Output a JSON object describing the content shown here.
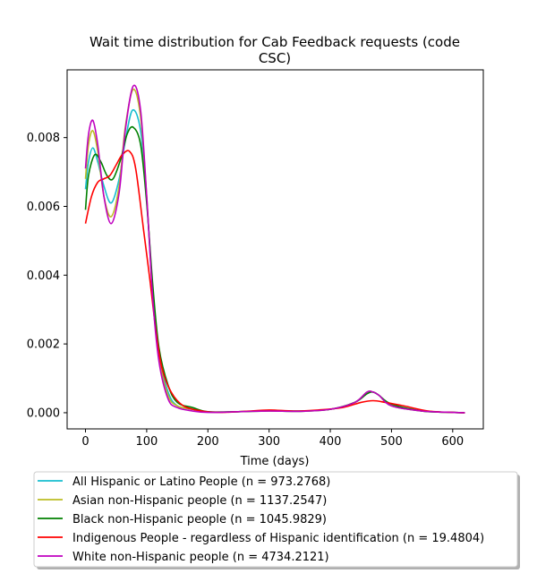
{
  "chart_data": {
    "type": "line",
    "title_lines": [
      "Wait time distribution  for Cab Feedback  requests (code",
      "CSC)"
    ],
    "xlabel": "Time (days)",
    "ylabel": "",
    "xlim": [
      -30,
      650
    ],
    "ylim": [
      -0.00047,
      0.00997
    ],
    "xticks": [
      0,
      100,
      200,
      300,
      400,
      500,
      600
    ],
    "xtick_labels": [
      "0",
      "100",
      "200",
      "300",
      "400",
      "500",
      "600"
    ],
    "yticks": [
      0.0,
      0.002,
      0.004,
      0.006,
      0.008
    ],
    "ytick_labels": [
      "0.000",
      "0.002",
      "0.004",
      "0.006",
      "0.008"
    ],
    "grid": false,
    "legend_position": "below",
    "series": [
      {
        "name": "All Hispanic or Latino People (n = 973.2768)",
        "color": "#17becf",
        "x": [
          0,
          5,
          12,
          20,
          30,
          42,
          55,
          65,
          77,
          90,
          100,
          110,
          120,
          135,
          150,
          175,
          200,
          250,
          300,
          350,
          400,
          440,
          460,
          470,
          480,
          500,
          550,
          600,
          620
        ],
        "y": [
          0.0065,
          0.0073,
          0.0077,
          0.0073,
          0.0066,
          0.0061,
          0.0068,
          0.0079,
          0.0088,
          0.0082,
          0.0062,
          0.0035,
          0.0017,
          0.0006,
          0.0002,
          0.0001,
          2e-05,
          3e-05,
          5e-05,
          4e-05,
          0.0001,
          0.0003,
          0.0006,
          0.0006,
          0.0005,
          0.0002,
          5e-05,
          1e-05,
          0.0
        ]
      },
      {
        "name": "Asian non-Hispanic people (n = 1137.2547)",
        "color": "#bcbd22",
        "x": [
          0,
          5,
          12,
          20,
          30,
          42,
          55,
          65,
          78,
          90,
          100,
          110,
          120,
          135,
          150,
          175,
          200,
          250,
          300,
          350,
          400,
          440,
          460,
          470,
          480,
          500,
          550,
          600,
          620
        ],
        "y": [
          0.0068,
          0.0078,
          0.0082,
          0.0076,
          0.0063,
          0.0057,
          0.0066,
          0.0083,
          0.0094,
          0.0086,
          0.0063,
          0.0034,
          0.0016,
          0.0005,
          0.0002,
          0.0001,
          2e-05,
          3e-05,
          5e-05,
          4e-05,
          0.0001,
          0.0003,
          0.0006,
          0.0006,
          0.0005,
          0.0002,
          5e-05,
          1e-05,
          0.0
        ]
      },
      {
        "name": "Black non-Hispanic people (n = 1045.9829)",
        "color": "#008000",
        "x": [
          0,
          5,
          15,
          25,
          35,
          45,
          58,
          68,
          78,
          90,
          100,
          110,
          120,
          135,
          150,
          175,
          200,
          250,
          300,
          350,
          400,
          440,
          460,
          470,
          480,
          500,
          550,
          600,
          620
        ],
        "y": [
          0.0059,
          0.0069,
          0.0075,
          0.0073,
          0.0069,
          0.0068,
          0.0074,
          0.0081,
          0.0083,
          0.0078,
          0.0061,
          0.0037,
          0.0019,
          0.0008,
          0.0003,
          0.00015,
          3e-05,
          3e-05,
          6e-05,
          5e-05,
          0.0001,
          0.0003,
          0.00055,
          0.0006,
          0.0005,
          0.00025,
          5e-05,
          1e-05,
          0.0
        ]
      },
      {
        "name": "Indigenous People - regardless of Hispanic identification (n = 19.4804)",
        "color": "#ff0000",
        "x": [
          0,
          10,
          20,
          30,
          40,
          50,
          60,
          72,
          82,
          95,
          105,
          115,
          125,
          140,
          160,
          190,
          220,
          260,
          300,
          340,
          380,
          420,
          450,
          470,
          490,
          520,
          560,
          600,
          620
        ],
        "y": [
          0.0055,
          0.0063,
          0.0067,
          0.0068,
          0.0069,
          0.0072,
          0.0075,
          0.0076,
          0.0071,
          0.0053,
          0.0039,
          0.0024,
          0.0013,
          0.0006,
          0.0002,
          5e-05,
          1e-05,
          4e-05,
          8e-05,
          5e-05,
          8e-05,
          0.00015,
          0.0003,
          0.00035,
          0.0003,
          0.0002,
          5e-05,
          1e-05,
          0.0
        ]
      },
      {
        "name": "White non-Hispanic people (n = 4734.2121)",
        "color": "#bf00bf",
        "x": [
          0,
          5,
          12,
          20,
          30,
          42,
          55,
          65,
          78,
          90,
          100,
          110,
          120,
          135,
          150,
          175,
          200,
          250,
          300,
          350,
          400,
          440,
          460,
          470,
          480,
          500,
          550,
          600,
          620
        ],
        "y": [
          0.0071,
          0.0081,
          0.0085,
          0.0078,
          0.0063,
          0.0055,
          0.0064,
          0.0082,
          0.0095,
          0.0088,
          0.0063,
          0.0033,
          0.0015,
          0.0004,
          0.00015,
          5e-05,
          1e-05,
          3e-05,
          5e-05,
          4e-05,
          0.0001,
          0.0003,
          0.0006,
          0.0006,
          0.0005,
          0.0002,
          5e-05,
          1e-05,
          0.0
        ]
      }
    ]
  }
}
